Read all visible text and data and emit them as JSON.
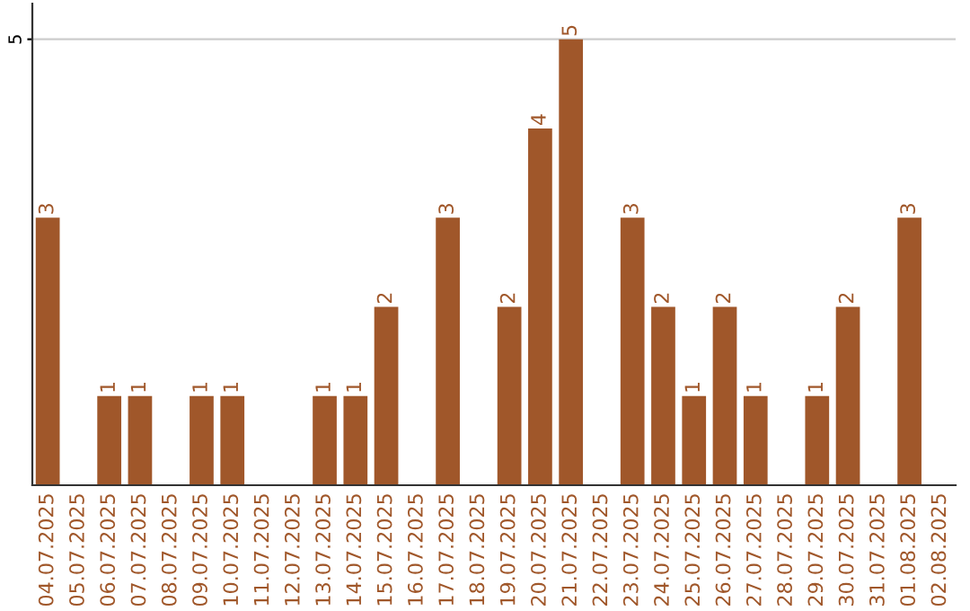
{
  "chart_data": {
    "type": "bar",
    "categories": [
      "04.07.2025",
      "05.07.2025",
      "06.07.2025",
      "07.07.2025",
      "08.07.2025",
      "09.07.2025",
      "10.07.2025",
      "11.07.2025",
      "12.07.2025",
      "13.07.2025",
      "14.07.2025",
      "15.07.2025",
      "16.07.2025",
      "17.07.2025",
      "18.07.2025",
      "19.07.2025",
      "20.07.2025",
      "21.07.2025",
      "22.07.2025",
      "23.07.2025",
      "24.07.2025",
      "25.07.2025",
      "26.07.2025",
      "27.07.2025",
      "28.07.2025",
      "29.07.2025",
      "30.07.2025",
      "31.07.2025",
      "01.08.2025",
      "02.08.2025"
    ],
    "values": [
      3,
      0,
      1,
      1,
      0,
      1,
      1,
      0,
      0,
      1,
      1,
      2,
      0,
      3,
      0,
      2,
      4,
      5,
      0,
      3,
      2,
      1,
      2,
      1,
      0,
      1,
      2,
      0,
      3,
      0
    ],
    "value_labels": [
      "3",
      null,
      "1",
      "1",
      null,
      "1",
      "1",
      null,
      null,
      "1",
      "1",
      "2",
      null,
      "3",
      null,
      "2",
      "4",
      "5",
      null,
      "3",
      "2",
      "1",
      "2",
      "1",
      null,
      "1",
      "2",
      null,
      "3",
      null
    ],
    "color": "#a0572a",
    "ylim": [
      0,
      5.4
    ],
    "yticks": [
      5
    ],
    "grid": "y",
    "legend": false
  }
}
